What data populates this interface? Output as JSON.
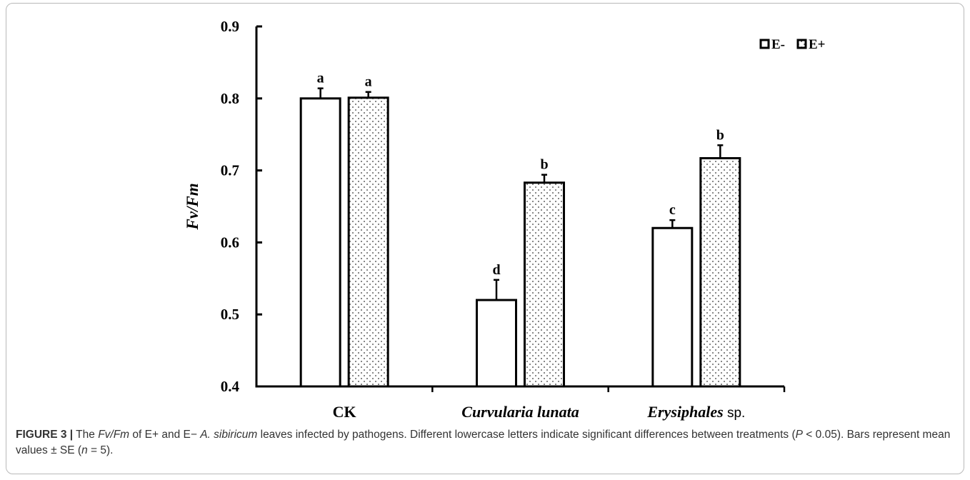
{
  "chart_data": {
    "type": "bar",
    "ylabel": "Fv/Fm",
    "ylim": [
      0.4,
      0.9
    ],
    "yticks": [
      "0.4",
      "0.5",
      "0.6",
      "0.7",
      "0.8",
      "0.9"
    ],
    "categories": [
      {
        "name": "CK",
        "suffix": ""
      },
      {
        "name": "Curvularia lunata",
        "suffix": ""
      },
      {
        "name": "Erysiphales",
        "suffix": " sp."
      }
    ],
    "series": [
      {
        "name": "E-",
        "pattern": "none",
        "values": [
          0.8,
          0.52,
          0.62
        ],
        "errors": [
          0.014,
          0.028,
          0.011
        ],
        "letters": [
          "a",
          "d",
          "c"
        ]
      },
      {
        "name": "E+",
        "pattern": "dots",
        "values": [
          0.801,
          0.683,
          0.717
        ],
        "errors": [
          0.008,
          0.011,
          0.018
        ],
        "letters": [
          "a",
          "b",
          "b"
        ]
      }
    ],
    "legend_position": "top-right",
    "grid": false
  },
  "caption": {
    "figure_number": "FIGURE 3 |",
    "parts": [
      {
        "text": " The ",
        "italic": false
      },
      {
        "text": "Fv/Fm",
        "italic": true
      },
      {
        "text": " of E+ and E− ",
        "italic": false
      },
      {
        "text": "A. sibiricum",
        "italic": true
      },
      {
        "text": " leaves infected by pathogens. Different lowercase letters indicate significant differences between treatments (",
        "italic": false
      },
      {
        "text": "P",
        "italic": true
      },
      {
        "text": " < 0.05). Bars represent mean values ± SE (",
        "italic": false
      },
      {
        "text": "n",
        "italic": true
      },
      {
        "text": " = 5).",
        "italic": false
      }
    ]
  }
}
